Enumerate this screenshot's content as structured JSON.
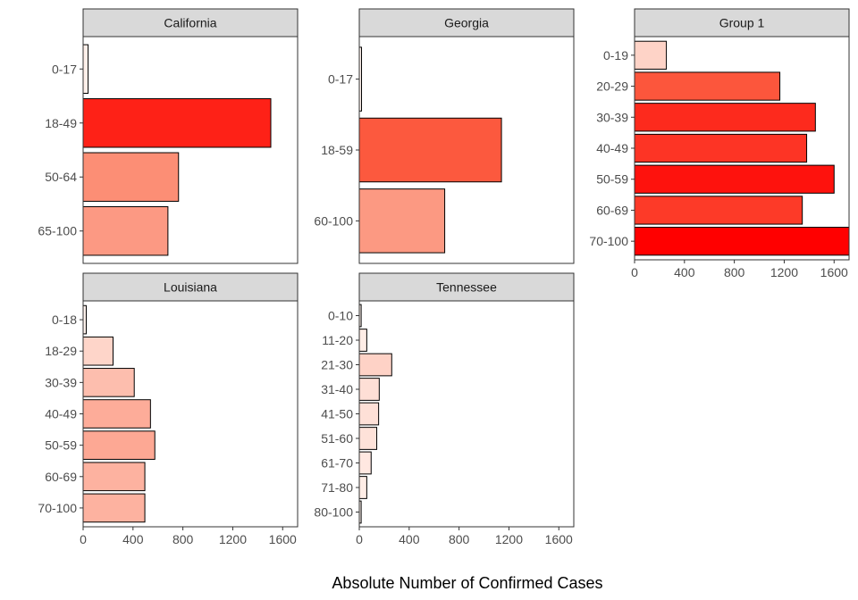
{
  "figure": {
    "x_axis_title": "Absolute Number of Confirmed Cases"
  },
  "chart_data": [
    {
      "type": "bar",
      "orientation": "horizontal",
      "panel": "California",
      "categories": [
        "0-17",
        "18-49",
        "50-64",
        "65-100"
      ],
      "values": [
        40,
        1505,
        765,
        680
      ],
      "xlim": [
        0,
        1720
      ],
      "xticks": [
        0,
        400,
        800,
        1200,
        1600
      ],
      "show_x_ticks": false,
      "fill_scale": "Reds"
    },
    {
      "type": "bar",
      "orientation": "horizontal",
      "panel": "Georgia",
      "categories": [
        "0-17",
        "18-59",
        "60-100"
      ],
      "values": [
        18,
        1140,
        685
      ],
      "xlim": [
        0,
        1720
      ],
      "xticks": [
        0,
        400,
        800,
        1200,
        1600
      ],
      "show_x_ticks": false,
      "fill_scale": "Reds"
    },
    {
      "type": "bar",
      "orientation": "horizontal",
      "panel": "Group 1",
      "categories": [
        "0-19",
        "20-29",
        "30-39",
        "40-49",
        "50-59",
        "60-69",
        "70-100"
      ],
      "values": [
        255,
        1165,
        1450,
        1380,
        1600,
        1345,
        1720
      ],
      "xlim": [
        0,
        1720
      ],
      "xticks": [
        0,
        400,
        800,
        1200,
        1600
      ],
      "show_x_ticks": true,
      "fill_scale": "Reds"
    },
    {
      "type": "bar",
      "orientation": "horizontal",
      "panel": "Louisiana",
      "categories": [
        "0-18",
        "18-29",
        "30-39",
        "40-49",
        "50-59",
        "60-69",
        "70-100"
      ],
      "values": [
        25,
        240,
        410,
        540,
        575,
        495,
        495
      ],
      "xlim": [
        0,
        1720
      ],
      "xticks": [
        0,
        400,
        800,
        1200,
        1600
      ],
      "show_x_ticks": true,
      "fill_scale": "Reds"
    },
    {
      "type": "bar",
      "orientation": "horizontal",
      "panel": "Tennessee",
      "categories": [
        "0-10",
        "11-20",
        "21-30",
        "31-40",
        "41-50",
        "51-60",
        "61-70",
        "71-80",
        "80-100"
      ],
      "values": [
        15,
        60,
        260,
        160,
        155,
        140,
        95,
        60,
        15
      ],
      "xlim": [
        0,
        1720
      ],
      "xticks": [
        0,
        400,
        800,
        1200,
        1600
      ],
      "show_x_ticks": true,
      "fill_scale": "Reds"
    }
  ],
  "colors": {
    "strip_background": "#d9d9d9",
    "panel_border": "#333333",
    "bar_outline": "#000000",
    "fill_low": "#fff5f0",
    "fill_mid": "#fb6a4a",
    "fill_high": "#ff0000"
  }
}
